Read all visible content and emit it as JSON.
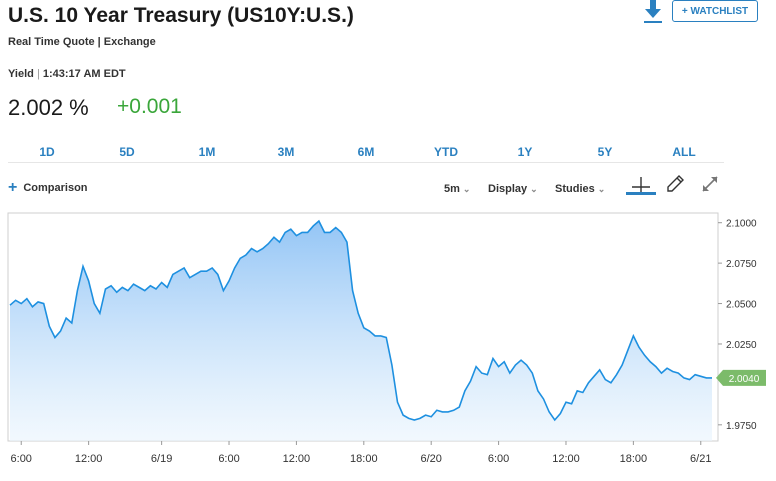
{
  "header": {
    "title": "U.S. 10 Year Treasury (US10Y:U.S.)",
    "subtitle": "Real Time Quote | Exchange",
    "yield_label": "Yield",
    "yield_sep": "|",
    "time": "1:43:17 AM EDT",
    "price": "2.002 %",
    "change": "+0.001",
    "change_color": "#3aa63a",
    "watchlist_label": "+ WATCHLIST",
    "download_icon": "download-icon"
  },
  "ranges": [
    "1D",
    "5D",
    "1M",
    "3M",
    "6M",
    "YTD",
    "1Y",
    "5Y",
    "ALL"
  ],
  "toolbar": {
    "comparison_label": "Comparison",
    "interval_label": "5m",
    "display_label": "Display",
    "studies_label": "Studies",
    "chevron_glyph": "⌄",
    "crosshair_icon": "crosshair-icon",
    "pencil_icon": "pencil-icon",
    "expand_icon": "expand-icon",
    "accent_color": "#2a80c0"
  },
  "chart_data": {
    "type": "area",
    "series_color": "#1e90e0",
    "ylim": [
      1.965,
      2.106
    ],
    "yticks": [
      "2.1000",
      "2.0750",
      "2.0500",
      "2.0250",
      "1.9750"
    ],
    "ytick_values": [
      2.1,
      2.075,
      2.05,
      2.025,
      1.975
    ],
    "last_value_label": "2.0040",
    "last_value": 2.004,
    "last_label_color": "#7cbb6a",
    "xtick_labels": [
      "6:00",
      "12:00",
      "6/19",
      "6:00",
      "12:00",
      "18:00",
      "6/20",
      "6:00",
      "12:00",
      "18:00",
      "6/21"
    ],
    "xtick_index": [
      2,
      14,
      27,
      39,
      51,
      63,
      75,
      87,
      99,
      111,
      123
    ],
    "x_count": 126,
    "values": [
      2.049,
      2.052,
      2.05,
      2.053,
      2.048,
      2.051,
      2.05,
      2.036,
      2.029,
      2.033,
      2.041,
      2.038,
      2.058,
      2.073,
      2.064,
      2.05,
      2.044,
      2.059,
      2.061,
      2.057,
      2.06,
      2.058,
      2.062,
      2.06,
      2.058,
      2.061,
      2.059,
      2.063,
      2.06,
      2.068,
      2.07,
      2.072,
      2.066,
      2.068,
      2.07,
      2.07,
      2.072,
      2.068,
      2.058,
      2.064,
      2.072,
      2.078,
      2.08,
      2.084,
      2.082,
      2.084,
      2.087,
      2.091,
      2.088,
      2.094,
      2.096,
      2.092,
      2.094,
      2.094,
      2.098,
      2.101,
      2.094,
      2.094,
      2.097,
      2.094,
      2.088,
      2.058,
      2.044,
      2.035,
      2.033,
      2.03,
      2.03,
      2.029,
      2.012,
      1.989,
      1.981,
      1.979,
      1.978,
      1.979,
      1.981,
      1.98,
      1.984,
      1.983,
      1.983,
      1.984,
      1.986,
      1.996,
      2.002,
      2.011,
      2.007,
      2.006,
      2.016,
      2.011,
      2.014,
      2.007,
      2.012,
      2.015,
      2.012,
      2.007,
      1.996,
      1.991,
      1.983,
      1.978,
      1.982,
      1.989,
      1.988,
      1.996,
      1.995,
      2.001,
      2.005,
      2.009,
      2.003,
      2.001,
      2.006,
      2.012,
      2.021,
      2.03,
      2.023,
      2.018,
      2.014,
      2.011,
      2.007,
      2.01,
      2.008,
      2.007,
      2.004,
      2.003,
      2.006,
      2.005,
      2.004,
      2.004
    ]
  }
}
